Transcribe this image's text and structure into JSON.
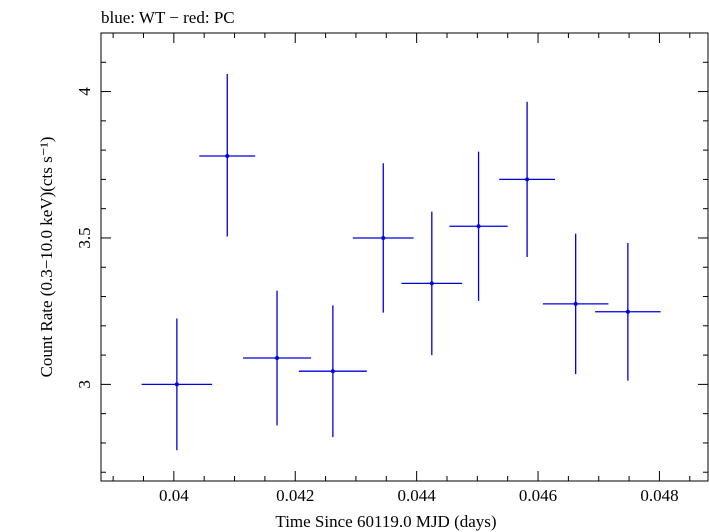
{
  "chart_data": {
    "type": "scatter",
    "title": "blue: WT − red: PC",
    "xlabel": "Time Since 60119.0 MJD (days)",
    "ylabel": "Count Rate (0.3−10.0 keV)(cts s⁻¹)",
    "xlim": [
      0.0388,
      0.0488
    ],
    "ylim": [
      2.67,
      4.2
    ],
    "x_ticks": [
      {
        "value": 0.04,
        "label": "0.04"
      },
      {
        "value": 0.042,
        "label": "0.042"
      },
      {
        "value": 0.044,
        "label": "0.044"
      },
      {
        "value": 0.046,
        "label": "0.046"
      },
      {
        "value": 0.048,
        "label": "0.048"
      }
    ],
    "y_ticks": [
      {
        "value": 3.0,
        "label": "3"
      },
      {
        "value": 3.5,
        "label": "3.5"
      },
      {
        "value": 4.0,
        "label": "4"
      }
    ],
    "grid": false,
    "series": [
      {
        "name": "WT",
        "color": "#0000dd",
        "points": [
          {
            "x": 0.04005,
            "y": 3.0,
            "xerr": 0.00058,
            "yerr_low": 0.225,
            "yerr_high": 0.225
          },
          {
            "x": 0.04088,
            "y": 3.78,
            "xerr": 0.00046,
            "yerr_low": 0.275,
            "yerr_high": 0.28
          },
          {
            "x": 0.0417,
            "y": 3.09,
            "xerr": 0.00056,
            "yerr_low": 0.23,
            "yerr_high": 0.23
          },
          {
            "x": 0.04262,
            "y": 3.045,
            "xerr": 0.00056,
            "yerr_low": 0.225,
            "yerr_high": 0.225
          },
          {
            "x": 0.04345,
            "y": 3.5,
            "xerr": 0.0005,
            "yerr_low": 0.255,
            "yerr_high": 0.255
          },
          {
            "x": 0.04425,
            "y": 3.345,
            "xerr": 0.0005,
            "yerr_low": 0.245,
            "yerr_high": 0.245
          },
          {
            "x": 0.04502,
            "y": 3.54,
            "xerr": 0.00048,
            "yerr_low": 0.255,
            "yerr_high": 0.255
          },
          {
            "x": 0.04582,
            "y": 3.7,
            "xerr": 0.00046,
            "yerr_low": 0.265,
            "yerr_high": 0.265
          },
          {
            "x": 0.04662,
            "y": 3.275,
            "xerr": 0.00054,
            "yerr_low": 0.24,
            "yerr_high": 0.24
          },
          {
            "x": 0.04748,
            "y": 3.248,
            "xerr": 0.00054,
            "yerr_low": 0.235,
            "yerr_high": 0.235
          }
        ]
      }
    ]
  }
}
